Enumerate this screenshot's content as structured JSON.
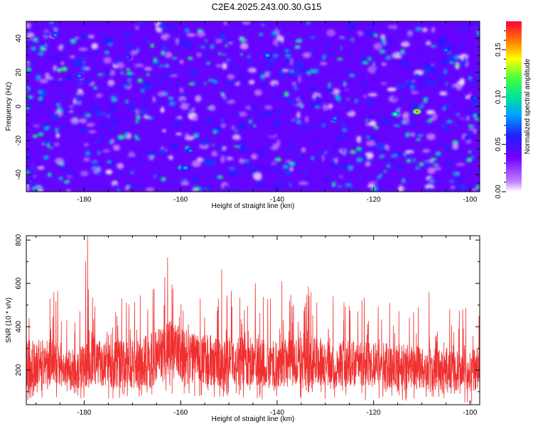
{
  "title": "C2E4.2025.243.00.30.G15",
  "chart_data": [
    {
      "type": "heatmap",
      "xlabel": "Height of straight line (km)",
      "ylabel": "Frequency (Hz)",
      "xlim": [
        -192,
        -98
      ],
      "ylim": [
        -50,
        50
      ],
      "xticks": [
        -180,
        -160,
        -140,
        -120,
        -100
      ],
      "yticks": [
        -40,
        -20,
        0,
        20,
        40
      ],
      "colorbar": {
        "label": "Normalized spectral amplitude",
        "range": [
          0,
          0.18
        ],
        "ticks": [
          "0.00",
          "0.05",
          "0.10",
          "0.15"
        ],
        "tick_values": [
          0.0,
          0.05,
          0.1,
          0.15
        ],
        "colors": [
          "#ffffff",
          "#c080ff",
          "#7000ff",
          "#2020ff",
          "#00a0ff",
          "#00e0a0",
          "#40ff40",
          "#ffff00",
          "#ff8000",
          "#ff0040"
        ]
      },
      "hotspots": [
        {
          "x": -111,
          "y": -3,
          "value": 0.17
        },
        {
          "x": -115.5,
          "y": -4.5,
          "value": 0.12
        },
        {
          "x": -128,
          "y": -7,
          "value": 0.08
        },
        {
          "x": -159,
          "y": -36,
          "value": 0.09
        },
        {
          "x": -158,
          "y": -26,
          "value": 0.08
        },
        {
          "x": -142,
          "y": 30,
          "value": 0.09
        },
        {
          "x": -186,
          "y": 42,
          "value": 0.08
        },
        {
          "x": -181,
          "y": 18,
          "value": 0.08
        },
        {
          "x": -171,
          "y": 29,
          "value": 0.07
        },
        {
          "x": -105,
          "y": 33,
          "value": 0.08
        },
        {
          "x": -99,
          "y": 5,
          "value": 0.07
        },
        {
          "x": -191,
          "y": -44,
          "value": 0.07
        }
      ]
    },
    {
      "type": "line",
      "xlabel": "Height of straight line (km)",
      "ylabel": "SNR (10 * v/v)",
      "xlim": [
        -192,
        -98
      ],
      "ylim": [
        40,
        820
      ],
      "xticks": [
        -180,
        -160,
        -140,
        -120,
        -100
      ],
      "yticks": [
        200,
        400,
        600,
        800
      ],
      "color": "#f03030",
      "baseline": {
        "x": [
          -192,
          -186,
          -185,
          -180,
          -179,
          -176,
          -170,
          -165,
          -162,
          -158,
          -150,
          -140,
          -133,
          -125,
          -120,
          -110,
          -105,
          -100,
          -98
        ],
        "median": [
          230,
          235,
          200,
          215,
          260,
          225,
          230,
          260,
          300,
          250,
          240,
          230,
          245,
          230,
          225,
          210,
          205,
          195,
          210
        ],
        "spread": [
          110,
          115,
          80,
          100,
          130,
          105,
          115,
          125,
          150,
          120,
          115,
          110,
          115,
          110,
          105,
          100,
          100,
          95,
          100
        ]
      },
      "peaks": [
        {
          "x": -179.3,
          "value": 825
        },
        {
          "x": -179.7,
          "value": 700
        },
        {
          "x": -162.7,
          "value": 720
        },
        {
          "x": -163.3,
          "value": 630
        },
        {
          "x": -151.5,
          "value": 665
        },
        {
          "x": -149.5,
          "value": 565
        },
        {
          "x": -144.5,
          "value": 600
        },
        {
          "x": -139,
          "value": 610
        },
        {
          "x": -133.5,
          "value": 585
        },
        {
          "x": -133,
          "value": 560
        },
        {
          "x": -185.5,
          "value": 565
        },
        {
          "x": -186.3,
          "value": 560
        },
        {
          "x": -108.5,
          "value": 560
        },
        {
          "x": -101.5,
          "value": 480
        },
        {
          "x": -125,
          "value": 495
        },
        {
          "x": -165.5,
          "value": 575
        }
      ]
    }
  ]
}
